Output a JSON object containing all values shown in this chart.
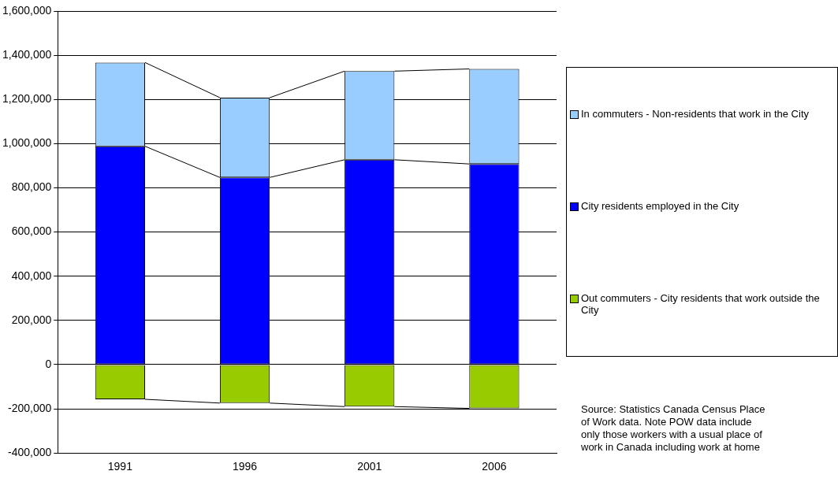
{
  "chart_data": {
    "type": "bar",
    "stacked": true,
    "categories": [
      "1991",
      "1996",
      "2001",
      "2006"
    ],
    "series": [
      {
        "name": "Out commuters - City residents that work outside the City",
        "color": "#99cc00",
        "values": [
          -157000,
          -174000,
          -190000,
          -198000
        ]
      },
      {
        "name": "City residents employed in the City",
        "color": "#0000ff",
        "values": [
          988000,
          847000,
          927000,
          908000
        ]
      },
      {
        "name": "In commuters - Non-residents that work in the City",
        "color": "#99ccff",
        "values": [
          379000,
          361000,
          401000,
          430000
        ]
      }
    ],
    "ylim": [
      -400000,
      1600000
    ],
    "yticks": [
      {
        "value": -400000,
        "label": "-400,000"
      },
      {
        "value": -200000,
        "label": "-200,000"
      },
      0,
      {
        "value": 200000,
        "label": "200,000"
      },
      {
        "value": 400000,
        "label": "400,000"
      },
      {
        "value": 600000,
        "label": "600,000"
      },
      {
        "value": 800000,
        "label": "800,000"
      },
      {
        "value": 1000000,
        "label": "1,000,000"
      },
      {
        "value": 1200000,
        "label": "1,200,000"
      },
      {
        "value": 1400000,
        "label": "1,400,000"
      },
      {
        "value": 1600000,
        "label": "1,600,000"
      }
    ],
    "grid": "y",
    "legend": "right",
    "annotations": [
      "Source: Statistics Canada Census Place of Work data.  Note POW data include only those workers with a usual place of work in Canada including work at home"
    ]
  }
}
